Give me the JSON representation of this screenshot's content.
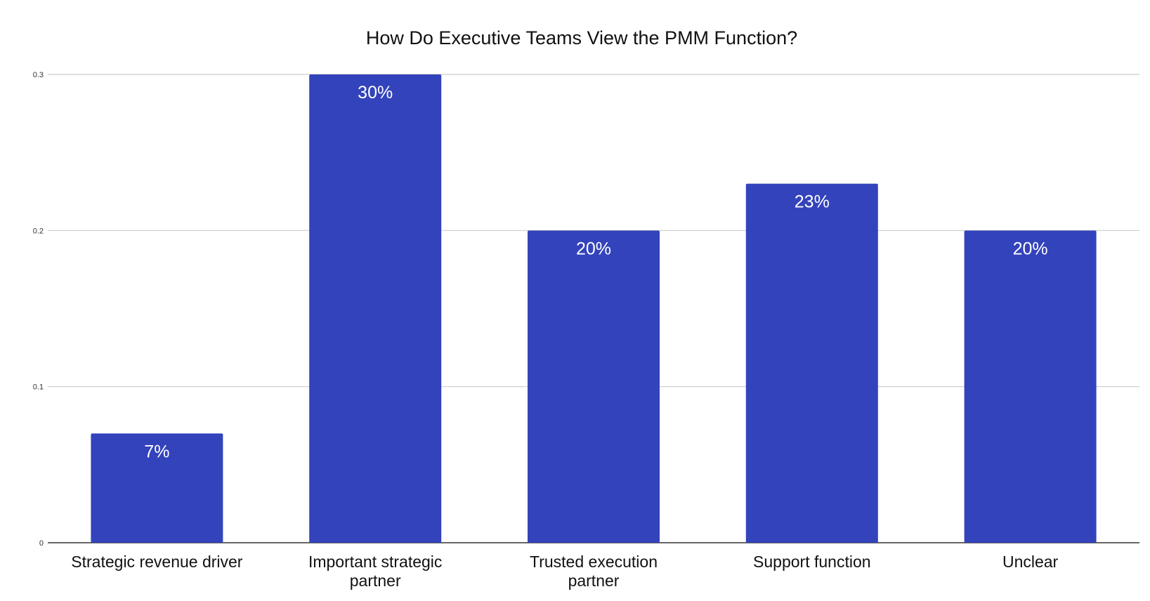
{
  "chart_data": {
    "type": "bar",
    "title": "How Do Executive Teams View the PMM Function?",
    "categories": [
      [
        "Strategic revenue driver"
      ],
      [
        "Important strategic",
        "partner"
      ],
      [
        "Trusted execution",
        "partner"
      ],
      [
        "Support function"
      ],
      [
        "Unclear"
      ]
    ],
    "values": [
      0.07,
      0.3,
      0.2,
      0.23,
      0.2
    ],
    "data_labels": [
      "7%",
      "30%",
      "20%",
      "23%",
      "20%"
    ],
    "yticks": [
      0,
      0.1,
      0.2,
      0.3
    ],
    "ytick_labels": [
      "0",
      "0.1",
      "0.2",
      "0.3"
    ],
    "ylim": [
      0,
      0.3
    ],
    "xlabel": "",
    "ylabel": "",
    "grid": true,
    "legend": "none",
    "colors": {
      "bar": "#3343bb",
      "grid": "#cccccc",
      "axis": "#333333",
      "text": "#111111",
      "label": "#ffffff"
    }
  }
}
